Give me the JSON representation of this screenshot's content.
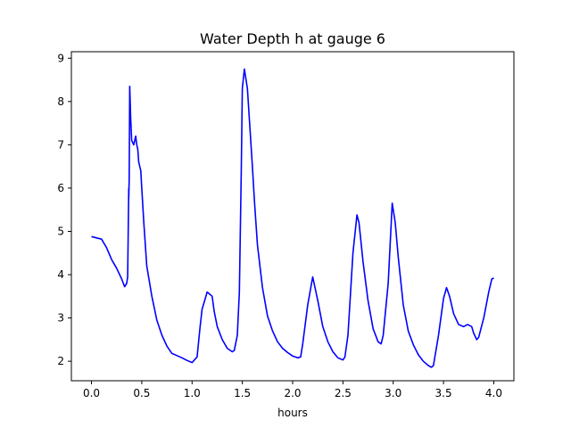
{
  "chart_data": {
    "type": "line",
    "title": "Water Depth h at gauge 6",
    "xlabel": "hours",
    "ylabel": "",
    "xlim": [
      -0.2,
      4.2
    ],
    "ylim": [
      1.55,
      9.15
    ],
    "xticks": [
      0.0,
      0.5,
      1.0,
      1.5,
      2.0,
      2.5,
      3.0,
      3.5,
      4.0
    ],
    "xtick_labels": [
      "0.0",
      "0.5",
      "1.0",
      "1.5",
      "2.0",
      "2.5",
      "3.0",
      "3.5",
      "4.0"
    ],
    "yticks": [
      2,
      3,
      4,
      5,
      6,
      7,
      8,
      9
    ],
    "ytick_labels": [
      "2",
      "3",
      "4",
      "5",
      "6",
      "7",
      "8",
      "9"
    ],
    "grid": false,
    "series": [
      {
        "color": "#0000ff",
        "x": [
          0.0,
          0.05,
          0.1,
          0.15,
          0.2,
          0.25,
          0.3,
          0.33,
          0.35,
          0.36,
          0.37,
          0.37,
          0.375,
          0.38,
          0.39,
          0.4,
          0.42,
          0.44,
          0.45,
          0.46,
          0.47,
          0.49,
          0.5,
          0.52,
          0.55,
          0.6,
          0.65,
          0.7,
          0.75,
          0.8,
          0.85,
          0.9,
          0.95,
          1.0,
          1.05,
          1.08,
          1.1,
          1.15,
          1.2,
          1.22,
          1.25,
          1.3,
          1.35,
          1.4,
          1.42,
          1.45,
          1.47,
          1.49,
          1.5,
          1.52,
          1.55,
          1.6,
          1.62,
          1.65,
          1.7,
          1.75,
          1.8,
          1.85,
          1.9,
          1.95,
          2.0,
          2.05,
          2.08,
          2.1,
          2.15,
          2.2,
          2.25,
          2.3,
          2.35,
          2.4,
          2.45,
          2.5,
          2.52,
          2.55,
          2.6,
          2.64,
          2.66,
          2.7,
          2.75,
          2.8,
          2.85,
          2.88,
          2.9,
          2.95,
          2.99,
          3.02,
          3.05,
          3.1,
          3.15,
          3.2,
          3.25,
          3.3,
          3.35,
          3.38,
          3.4,
          3.45,
          3.5,
          3.53,
          3.56,
          3.6,
          3.65,
          3.7,
          3.74,
          3.78,
          3.8,
          3.83,
          3.85,
          3.9,
          3.95,
          3.98,
          4.0
        ],
        "y": [
          4.88,
          4.85,
          4.82,
          4.62,
          4.35,
          4.15,
          3.9,
          3.72,
          3.8,
          3.95,
          6.0,
          5.75,
          6.2,
          8.35,
          7.6,
          7.1,
          7.0,
          7.2,
          7.0,
          6.9,
          6.6,
          6.4,
          6.0,
          5.2,
          4.2,
          3.5,
          2.95,
          2.6,
          2.35,
          2.18,
          2.13,
          2.08,
          2.02,
          1.97,
          2.1,
          2.8,
          3.2,
          3.6,
          3.5,
          3.15,
          2.8,
          2.5,
          2.3,
          2.22,
          2.25,
          2.6,
          3.6,
          6.5,
          8.3,
          8.75,
          8.3,
          6.5,
          5.7,
          4.7,
          3.7,
          3.05,
          2.7,
          2.45,
          2.3,
          2.2,
          2.12,
          2.08,
          2.1,
          2.4,
          3.3,
          3.95,
          3.4,
          2.8,
          2.45,
          2.22,
          2.08,
          2.03,
          2.1,
          2.6,
          4.5,
          5.38,
          5.2,
          4.3,
          3.4,
          2.75,
          2.45,
          2.4,
          2.6,
          3.8,
          5.65,
          5.2,
          4.4,
          3.3,
          2.7,
          2.38,
          2.15,
          2.0,
          1.9,
          1.86,
          1.9,
          2.6,
          3.45,
          3.7,
          3.5,
          3.1,
          2.85,
          2.8,
          2.85,
          2.8,
          2.65,
          2.5,
          2.55,
          3.0,
          3.6,
          3.9,
          3.92
        ]
      }
    ]
  }
}
